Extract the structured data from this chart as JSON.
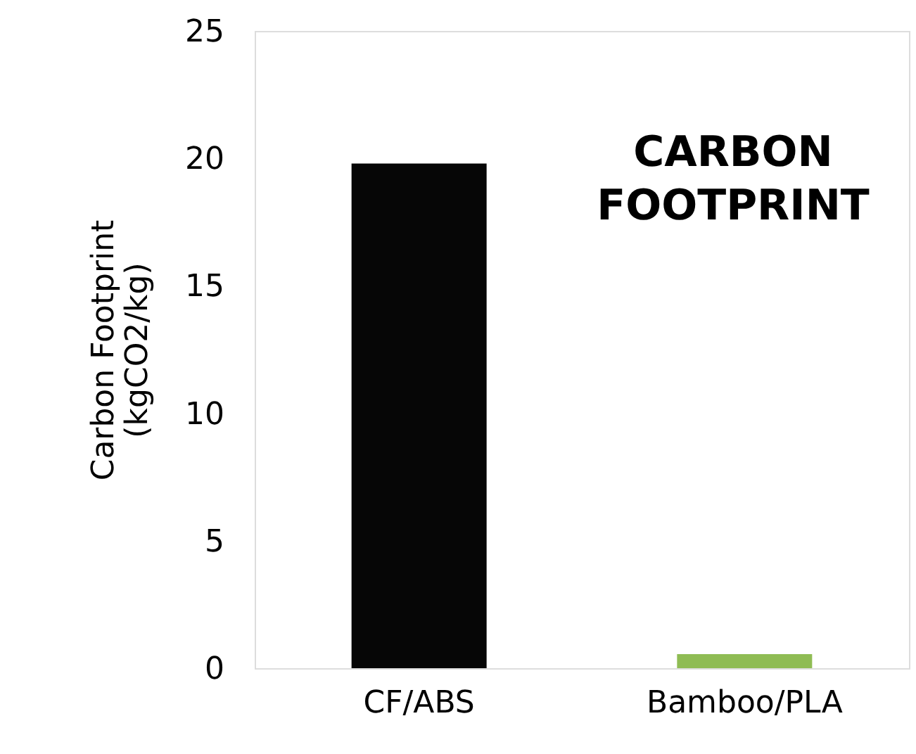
{
  "chart_data": {
    "type": "bar",
    "ylabel": "Carbon Footprint\n(kgCO2/kg)",
    "categories": [
      "CF/ABS",
      "Bamboo/PLA"
    ],
    "values": [
      19.8,
      0.55
    ],
    "colors": [
      "#060606",
      "#8fbc54"
    ],
    "ylim": [
      0,
      25
    ],
    "yticks": [
      0,
      5,
      10,
      15,
      20,
      25
    ],
    "grid": false,
    "annotations": [
      "CARBON\nFOOTPRINT"
    ]
  }
}
